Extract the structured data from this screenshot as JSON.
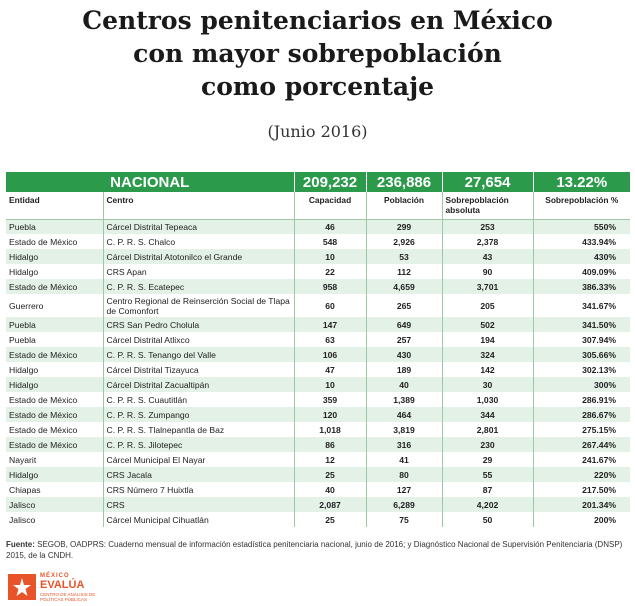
{
  "title_lines": [
    "Centros penitenciarios en México",
    "con mayor sobrepoblación",
    "como porcentaje"
  ],
  "subtitle": "(Junio 2016)",
  "chart_data": {
    "type": "table",
    "national": {
      "label": "NACIONAL",
      "capacidad": "209,232",
      "poblacion": "236,886",
      "sobre_abs": "27,654",
      "sobre_pct": "13.22%"
    },
    "columns": [
      "Entidad",
      "Centro",
      "Capacidad",
      "Población",
      "Sobrepoblación absoluta",
      "Sobrepoblación %"
    ],
    "rows": [
      {
        "entidad": "Puebla",
        "centro": "Cárcel Distrital Tepeaca",
        "capacidad": "46",
        "poblacion": "299",
        "sobre_abs": "253",
        "sobre_pct": "550%"
      },
      {
        "entidad": "Estado de México",
        "centro": "C. P. R. S. Chalco",
        "capacidad": "548",
        "poblacion": "2,926",
        "sobre_abs": "2,378",
        "sobre_pct": "433.94%"
      },
      {
        "entidad": "Hidalgo",
        "centro": "Cárcel Distrital Atotonilco el Grande",
        "capacidad": "10",
        "poblacion": "53",
        "sobre_abs": "43",
        "sobre_pct": "430%"
      },
      {
        "entidad": "Hidalgo",
        "centro": "CRS Apan",
        "capacidad": "22",
        "poblacion": "112",
        "sobre_abs": "90",
        "sobre_pct": "409.09%"
      },
      {
        "entidad": "Estado de México",
        "centro": "C. P. R. S. Ecatepec",
        "capacidad": "958",
        "poblacion": "4,659",
        "sobre_abs": "3,701",
        "sobre_pct": "386.33%"
      },
      {
        "entidad": "Guerrero",
        "centro": "Centro Regional de Reinserción Social de Tlapa de Comonfort",
        "capacidad": "60",
        "poblacion": "265",
        "sobre_abs": "205",
        "sobre_pct": "341.67%"
      },
      {
        "entidad": "Puebla",
        "centro": "CRS San Pedro Cholula",
        "capacidad": "147",
        "poblacion": "649",
        "sobre_abs": "502",
        "sobre_pct": "341.50%"
      },
      {
        "entidad": "Puebla",
        "centro": "Cárcel Distrital Atlixco",
        "capacidad": "63",
        "poblacion": "257",
        "sobre_abs": "194",
        "sobre_pct": "307.94%"
      },
      {
        "entidad": "Estado de México",
        "centro": "C. P. R. S. Tenango del Valle",
        "capacidad": "106",
        "poblacion": "430",
        "sobre_abs": "324",
        "sobre_pct": "305.66%"
      },
      {
        "entidad": "Hidalgo",
        "centro": "Cárcel Distrital Tizayuca",
        "capacidad": "47",
        "poblacion": "189",
        "sobre_abs": "142",
        "sobre_pct": "302.13%"
      },
      {
        "entidad": "Hidalgo",
        "centro": "Cárcel Distrital Zacualtipán",
        "capacidad": "10",
        "poblacion": "40",
        "sobre_abs": "30",
        "sobre_pct": "300%"
      },
      {
        "entidad": "Estado de México",
        "centro": "C. P. R. S. Cuautitlán",
        "capacidad": "359",
        "poblacion": "1,389",
        "sobre_abs": "1,030",
        "sobre_pct": "286.91%"
      },
      {
        "entidad": "Estado de México",
        "centro": "C. P. R. S. Zumpango",
        "capacidad": "120",
        "poblacion": "464",
        "sobre_abs": "344",
        "sobre_pct": "286.67%"
      },
      {
        "entidad": "Estado de México",
        "centro": "C. P. R. S. Tlalnepantla de Baz",
        "capacidad": "1,018",
        "poblacion": "3,819",
        "sobre_abs": "2,801",
        "sobre_pct": "275.15%"
      },
      {
        "entidad": "Estado de México",
        "centro": "C. P. R. S. Jilotepec",
        "capacidad": "86",
        "poblacion": "316",
        "sobre_abs": "230",
        "sobre_pct": "267.44%"
      },
      {
        "entidad": "Nayarit",
        "centro": "Cárcel Municipal El Nayar",
        "capacidad": "12",
        "poblacion": "41",
        "sobre_abs": "29",
        "sobre_pct": "241.67%"
      },
      {
        "entidad": "Hidalgo",
        "centro": "CRS Jacala",
        "capacidad": "25",
        "poblacion": "80",
        "sobre_abs": "55",
        "sobre_pct": "220%"
      },
      {
        "entidad": "Chiapas",
        "centro": "CRS Número 7 Huixtla",
        "capacidad": "40",
        "poblacion": "127",
        "sobre_abs": "87",
        "sobre_pct": "217.50%"
      },
      {
        "entidad": "Jalisco",
        "centro": "CRS",
        "capacidad": "2,087",
        "poblacion": "6,289",
        "sobre_abs": "4,202",
        "sobre_pct": "201.34%"
      },
      {
        "entidad": "Jalisco",
        "centro": "Cárcel Municipal Cihuatlán",
        "capacidad": "25",
        "poblacion": "75",
        "sobre_abs": "50",
        "sobre_pct": "200%"
      }
    ]
  },
  "source": {
    "label": "Fuente:",
    "text": "SEGOB, OADPRS: Cuaderno mensual de información estadística penitenciaria nacional, junio de 2016; y Diagnóstico Nacional de Supervisión Penitenciaria (DNSP) 2015, de la CNDH."
  },
  "logo": {
    "top": "MÉXICO",
    "name": "EVALÚA",
    "tagline": "CENTRO DE ANÁLISIS DE POLÍTICAS PÚBLICAS"
  },
  "colors": {
    "header_green": "#2c9a4b",
    "row_alt": "#e3f1e6",
    "logo_orange": "#e8542a"
  }
}
